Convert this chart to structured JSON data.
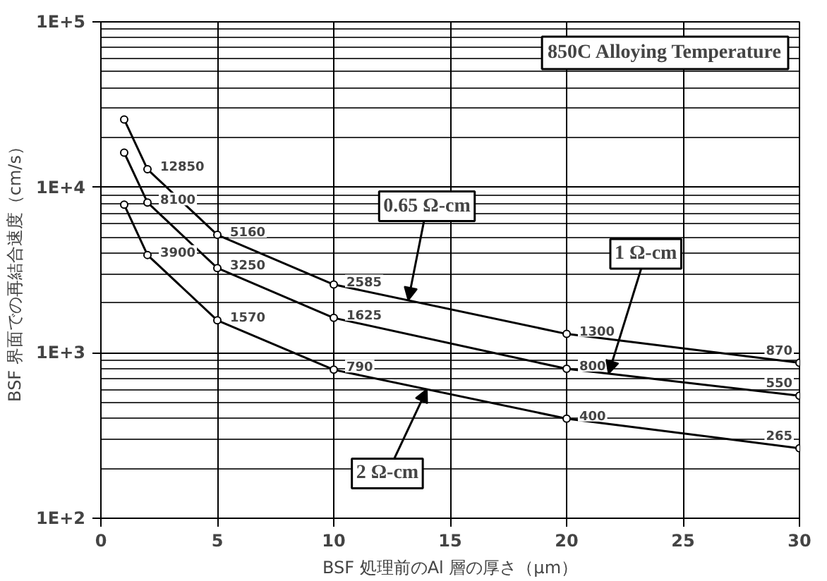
{
  "chart_data": {
    "type": "line",
    "title": "850C Alloying Temperature",
    "xlabel": "BSF 処理前のAl 層の厚さ（μm）",
    "ylabel": "BSF 界面での再結合速度（cm/s）",
    "log": "y",
    "grid": true,
    "marker": "circle",
    "line_style": "solid",
    "xlim": [
      0,
      30
    ],
    "xticks": [
      0,
      5,
      10,
      15,
      20,
      25,
      30
    ],
    "ylim": [
      100,
      100000
    ],
    "yticks": [
      {
        "value": 100,
        "label": "1E+2"
      },
      {
        "value": 1000,
        "label": "1E+3"
      },
      {
        "value": 10000,
        "label": "1E+4"
      },
      {
        "value": 100000,
        "label": "1E+5"
      }
    ],
    "x": [
      1,
      2,
      5,
      10,
      20,
      30
    ],
    "series": [
      {
        "name": "0.65 Ω-cm",
        "color": "#000000",
        "values": [
          25700,
          12850,
          5160,
          2585,
          1300,
          870
        ],
        "value_labels": [
          null,
          "12850",
          "5160",
          "2585",
          "1300",
          "870"
        ]
      },
      {
        "name": "1 Ω-cm",
        "color": "#000000",
        "values": [
          16200,
          8100,
          3250,
          1625,
          800,
          550
        ],
        "value_labels": [
          null,
          "8100",
          "3250",
          "1625",
          "800",
          "550"
        ]
      },
      {
        "name": "2 Ω-cm",
        "color": "#000000",
        "values": [
          7850,
          3900,
          1570,
          790,
          400,
          265
        ],
        "value_labels": [
          null,
          "3900",
          "1570",
          "790",
          "400",
          "265"
        ]
      }
    ]
  }
}
